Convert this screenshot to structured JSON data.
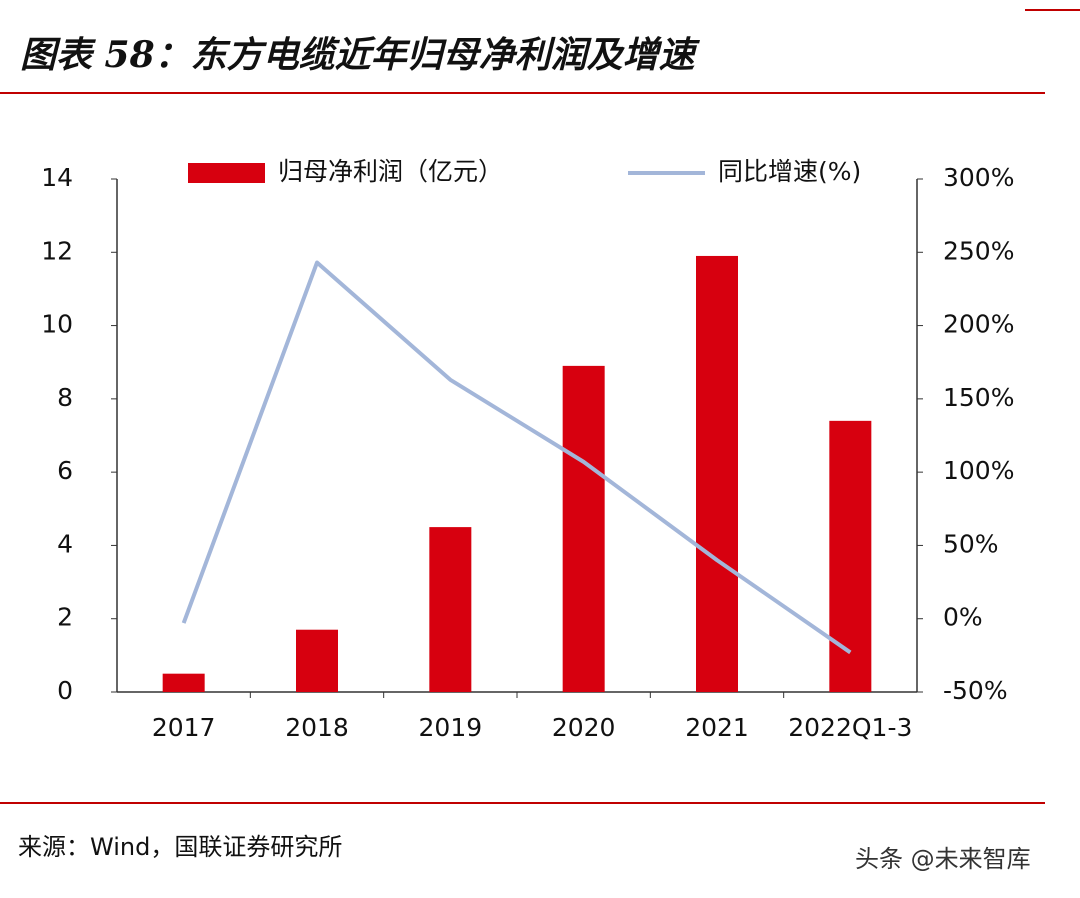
{
  "title": "图表 58：东方电缆近年归母净利润及增速",
  "source": "来源：Wind，国联证券研究所",
  "watermark": "头条 @未来智库",
  "chart_data": {
    "type": "bar-line",
    "categories": [
      "2017",
      "2018",
      "2019",
      "2020",
      "2021",
      "2022Q1-3"
    ],
    "series": [
      {
        "name": "归母净利润（亿元）",
        "type": "bar",
        "color": "#d7000f",
        "values": [
          0.5,
          1.7,
          4.5,
          8.9,
          11.9,
          7.4
        ]
      },
      {
        "name": "同比增速(%)",
        "type": "line",
        "axis": "y2",
        "color": "#a3b6d9",
        "values": [
          -3,
          243,
          163,
          107,
          40,
          -23
        ]
      }
    ],
    "ylim": [
      0,
      14
    ],
    "yticks": [
      0,
      2,
      4,
      6,
      8,
      10,
      12,
      14
    ],
    "y2lim": [
      -50,
      300
    ],
    "y2ticks": [
      {
        "value": -50,
        "label": "-50%"
      },
      {
        "value": 0,
        "label": "0%"
      },
      {
        "value": 50,
        "label": "50%"
      },
      {
        "value": 100,
        "label": "100%"
      },
      {
        "value": 150,
        "label": "150%"
      },
      {
        "value": 200,
        "label": "200%"
      },
      {
        "value": 250,
        "label": "250%"
      },
      {
        "value": 300,
        "label": "300%"
      }
    ],
    "legend": "top"
  }
}
